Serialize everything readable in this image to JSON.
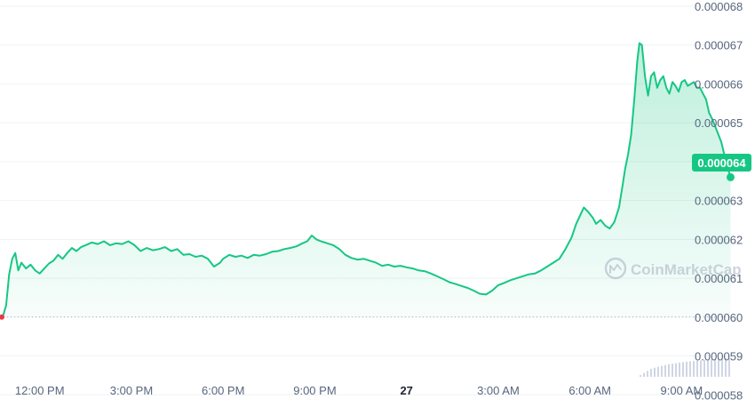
{
  "chart_data": {
    "type": "area",
    "watermark": "CoinMarketCap",
    "current_price_label": "0.000064",
    "y_ticks": [
      "0.000068",
      "0.000067",
      "0.000066",
      "0.000065",
      "0.000064",
      "0.000063",
      "0.000062",
      "0.000061",
      "0.000060",
      "0.000059",
      "0.000058"
    ],
    "y_tick_values": [
      6.8e-05,
      6.7e-05,
      6.6e-05,
      6.5e-05,
      6.4e-05,
      6.3e-05,
      6.2e-05,
      6.1e-05,
      6e-05,
      5.9e-05,
      5.8e-05
    ],
    "ylim": [
      5.78e-05,
      6.8e-05
    ],
    "x_ticks": [
      {
        "label": "12:00 PM",
        "t": 12
      },
      {
        "label": "3:00 PM",
        "t": 15
      },
      {
        "label": "6:00 PM",
        "t": 18
      },
      {
        "label": "9:00 PM",
        "t": 21
      },
      {
        "label": "27",
        "t": 24,
        "bold": true
      },
      {
        "label": "3:00 AM",
        "t": 27
      },
      {
        "label": "6:00 AM",
        "t": 30
      },
      {
        "label": "9:00 AM",
        "t": 33
      }
    ],
    "xlim": [
      10.7,
      35.4
    ],
    "baseline_price": 6e-05,
    "price_series": [
      [
        10.7,
        6e-05
      ],
      [
        10.8,
        6.003e-05
      ],
      [
        10.9,
        6.03e-05
      ],
      [
        11.0,
        6.11e-05
      ],
      [
        11.1,
        6.15e-05
      ],
      [
        11.2,
        6.165e-05
      ],
      [
        11.3,
        6.12e-05
      ],
      [
        11.4,
        6.14e-05
      ],
      [
        11.55,
        6.125e-05
      ],
      [
        11.7,
        6.135e-05
      ],
      [
        11.85,
        6.12e-05
      ],
      [
        12.0,
        6.112e-05
      ],
      [
        12.15,
        6.125e-05
      ],
      [
        12.3,
        6.138e-05
      ],
      [
        12.45,
        6.145e-05
      ],
      [
        12.6,
        6.16e-05
      ],
      [
        12.75,
        6.15e-05
      ],
      [
        12.9,
        6.165e-05
      ],
      [
        13.05,
        6.178e-05
      ],
      [
        13.2,
        6.17e-05
      ],
      [
        13.35,
        6.18e-05
      ],
      [
        13.5,
        6.185e-05
      ],
      [
        13.7,
        6.192e-05
      ],
      [
        13.9,
        6.188e-05
      ],
      [
        14.1,
        6.195e-05
      ],
      [
        14.3,
        6.185e-05
      ],
      [
        14.5,
        6.19e-05
      ],
      [
        14.7,
        6.188e-05
      ],
      [
        14.9,
        6.195e-05
      ],
      [
        15.1,
        6.185e-05
      ],
      [
        15.3,
        6.17e-05
      ],
      [
        15.5,
        6.178e-05
      ],
      [
        15.7,
        6.172e-05
      ],
      [
        15.9,
        6.175e-05
      ],
      [
        16.1,
        6.18e-05
      ],
      [
        16.3,
        6.17e-05
      ],
      [
        16.5,
        6.175e-05
      ],
      [
        16.7,
        6.16e-05
      ],
      [
        16.9,
        6.162e-05
      ],
      [
        17.1,
        6.155e-05
      ],
      [
        17.3,
        6.158e-05
      ],
      [
        17.5,
        6.15e-05
      ],
      [
        17.7,
        6.13e-05
      ],
      [
        17.9,
        6.14e-05
      ],
      [
        18.0,
        6.15e-05
      ],
      [
        18.2,
        6.16e-05
      ],
      [
        18.4,
        6.155e-05
      ],
      [
        18.6,
        6.158e-05
      ],
      [
        18.8,
        6.152e-05
      ],
      [
        19.0,
        6.16e-05
      ],
      [
        19.2,
        6.158e-05
      ],
      [
        19.4,
        6.162e-05
      ],
      [
        19.6,
        6.168e-05
      ],
      [
        19.8,
        6.17e-05
      ],
      [
        20.0,
        6.175e-05
      ],
      [
        20.2,
        6.178e-05
      ],
      [
        20.4,
        6.182e-05
      ],
      [
        20.6,
        6.19e-05
      ],
      [
        20.75,
        6.195e-05
      ],
      [
        20.9,
        6.21e-05
      ],
      [
        21.05,
        6.2e-05
      ],
      [
        21.2,
        6.195e-05
      ],
      [
        21.4,
        6.19e-05
      ],
      [
        21.6,
        6.185e-05
      ],
      [
        21.8,
        6.175e-05
      ],
      [
        22.0,
        6.16e-05
      ],
      [
        22.2,
        6.152e-05
      ],
      [
        22.4,
        6.148e-05
      ],
      [
        22.6,
        6.15e-05
      ],
      [
        22.8,
        6.145e-05
      ],
      [
        23.0,
        6.14e-05
      ],
      [
        23.2,
        6.132e-05
      ],
      [
        23.4,
        6.135e-05
      ],
      [
        23.6,
        6.13e-05
      ],
      [
        23.8,
        6.132e-05
      ],
      [
        24.0,
        6.128e-05
      ],
      [
        24.2,
        6.125e-05
      ],
      [
        24.4,
        6.12e-05
      ],
      [
        24.6,
        6.118e-05
      ],
      [
        24.8,
        6.112e-05
      ],
      [
        25.0,
        6.105e-05
      ],
      [
        25.2,
        6.098e-05
      ],
      [
        25.4,
        6.09e-05
      ],
      [
        25.6,
        6.085e-05
      ],
      [
        25.8,
        6.08e-05
      ],
      [
        26.0,
        6.075e-05
      ],
      [
        26.2,
        6.068e-05
      ],
      [
        26.4,
        6.06e-05
      ],
      [
        26.6,
        6.058e-05
      ],
      [
        26.8,
        6.068e-05
      ],
      [
        27.0,
        6.082e-05
      ],
      [
        27.2,
        6.088e-05
      ],
      [
        27.4,
        6.095e-05
      ],
      [
        27.6,
        6.1e-05
      ],
      [
        27.8,
        6.105e-05
      ],
      [
        28.0,
        6.11e-05
      ],
      [
        28.2,
        6.112e-05
      ],
      [
        28.4,
        6.12e-05
      ],
      [
        28.6,
        6.13e-05
      ],
      [
        28.8,
        6.14e-05
      ],
      [
        29.0,
        6.15e-05
      ],
      [
        29.2,
        6.175e-05
      ],
      [
        29.4,
        6.205e-05
      ],
      [
        29.55,
        6.24e-05
      ],
      [
        29.7,
        6.265e-05
      ],
      [
        29.8,
        6.282e-05
      ],
      [
        29.95,
        6.27e-05
      ],
      [
        30.1,
        6.255e-05
      ],
      [
        30.2,
        6.24e-05
      ],
      [
        30.35,
        6.25e-05
      ],
      [
        30.5,
        6.235e-05
      ],
      [
        30.65,
        6.228e-05
      ],
      [
        30.8,
        6.245e-05
      ],
      [
        30.95,
        6.282e-05
      ],
      [
        31.05,
        6.33e-05
      ],
      [
        31.15,
        6.38e-05
      ],
      [
        31.25,
        6.42e-05
      ],
      [
        31.35,
        6.47e-05
      ],
      [
        31.45,
        6.56e-05
      ],
      [
        31.55,
        6.66e-05
      ],
      [
        31.62,
        6.705e-05
      ],
      [
        31.7,
        6.7e-05
      ],
      [
        31.8,
        6.62e-05
      ],
      [
        31.9,
        6.57e-05
      ],
      [
        32.0,
        6.62e-05
      ],
      [
        32.1,
        6.63e-05
      ],
      [
        32.2,
        6.59e-05
      ],
      [
        32.3,
        6.61e-05
      ],
      [
        32.4,
        6.62e-05
      ],
      [
        32.5,
        6.59e-05
      ],
      [
        32.6,
        6.575e-05
      ],
      [
        32.7,
        6.605e-05
      ],
      [
        32.8,
        6.595e-05
      ],
      [
        32.9,
        6.58e-05
      ],
      [
        33.0,
        6.605e-05
      ],
      [
        33.1,
        6.61e-05
      ],
      [
        33.2,
        6.595e-05
      ],
      [
        33.3,
        6.6e-05
      ],
      [
        33.4,
        6.605e-05
      ],
      [
        33.5,
        6.59e-05
      ],
      [
        33.6,
        6.59e-05
      ],
      [
        33.7,
        6.575e-05
      ],
      [
        33.8,
        6.56e-05
      ],
      [
        33.9,
        6.525e-05
      ],
      [
        34.0,
        6.51e-05
      ],
      [
        34.15,
        6.48e-05
      ],
      [
        34.3,
        6.45e-05
      ],
      [
        34.45,
        6.4e-05
      ],
      [
        34.6,
        6.36e-05
      ]
    ],
    "volume_series": [
      [
        10.7,
        5.79e-05
      ],
      [
        11.3,
        5.798e-05
      ],
      [
        12.0,
        5.801e-05
      ],
      [
        13.5,
        5.803e-05
      ],
      [
        15.0,
        5.805e-05
      ],
      [
        17.0,
        5.806e-05
      ],
      [
        19.0,
        5.806e-05
      ],
      [
        21.0,
        5.806e-05
      ],
      [
        22.5,
        5.806e-05
      ],
      [
        23.5,
        5.804e-05
      ],
      [
        25.0,
        5.803e-05
      ],
      [
        26.5,
        5.803e-05
      ],
      [
        28.0,
        5.805e-05
      ],
      [
        29.5,
        5.806e-05
      ],
      [
        30.5,
        5.808e-05
      ],
      [
        31.1,
        5.812e-05
      ],
      [
        31.5,
        5.845e-05
      ],
      [
        32.0,
        5.868e-05
      ],
      [
        32.5,
        5.878e-05
      ],
      [
        33.0,
        5.884e-05
      ],
      [
        33.5,
        5.888e-05
      ],
      [
        34.0,
        5.892e-05
      ],
      [
        34.6,
        5.895e-05
      ]
    ],
    "line_color": "#16c784",
    "start_dot_color": "#ea3943",
    "grid": true,
    "y_axis_position": "right"
  }
}
